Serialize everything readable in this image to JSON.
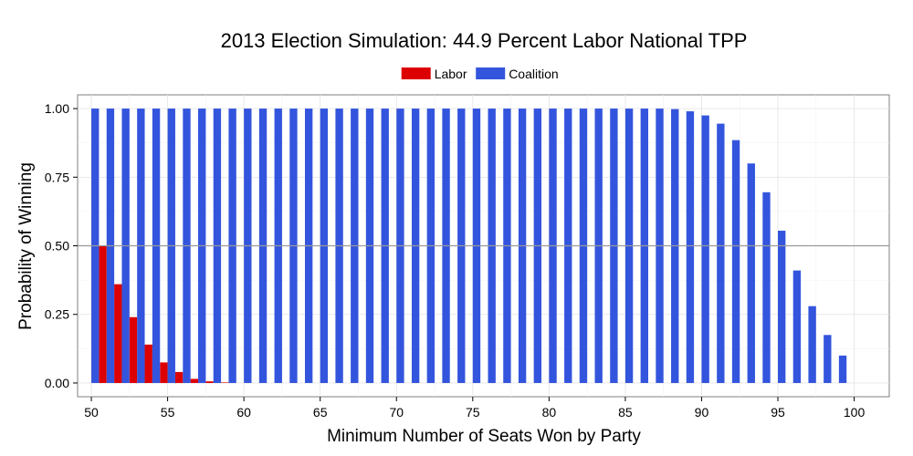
{
  "chart_data": {
    "type": "bar",
    "title": "2013 Election Simulation: 44.9 Percent Labor National TPP",
    "xlabel": "Minimum Number of Seats Won by Party",
    "ylabel": "Probability of Winning",
    "xlim": [
      49.1,
      102.3
    ],
    "ylim": [
      -0.05,
      1.05
    ],
    "xticks": [
      50,
      55,
      60,
      65,
      70,
      75,
      80,
      85,
      90,
      95,
      100
    ],
    "yticks": [
      0,
      0.25,
      0.5,
      0.75,
      1.0
    ],
    "ytick_labels": [
      "0.00",
      "0.25",
      "0.50",
      "0.75",
      "1.00"
    ],
    "reference_line_y": 0.5,
    "legend_position": "top-center",
    "grid": true,
    "series": [
      {
        "name": "Labor",
        "color": "#dd0000",
        "x": [
          50,
          51,
          52,
          53,
          54,
          55,
          56,
          57,
          58,
          59
        ],
        "values": [
          0.0,
          0.5,
          0.36,
          0.24,
          0.14,
          0.075,
          0.04,
          0.015,
          0.006,
          0.002
        ]
      },
      {
        "name": "Coalition",
        "color": "#3355dd",
        "x": [
          50,
          51,
          52,
          53,
          54,
          55,
          56,
          57,
          58,
          59,
          60,
          61,
          62,
          63,
          64,
          65,
          66,
          67,
          68,
          69,
          70,
          71,
          72,
          73,
          74,
          75,
          76,
          77,
          78,
          79,
          80,
          81,
          82,
          83,
          84,
          85,
          86,
          87,
          88,
          89,
          90,
          91,
          92,
          93,
          94,
          95,
          96,
          97,
          98,
          99
        ],
        "values": [
          1.0,
          1.0,
          1.0,
          1.0,
          1.0,
          1.0,
          1.0,
          1.0,
          1.0,
          1.0,
          1.0,
          1.0,
          1.0,
          1.0,
          1.0,
          1.0,
          1.0,
          1.0,
          1.0,
          1.0,
          1.0,
          1.0,
          1.0,
          1.0,
          1.0,
          1.0,
          1.0,
          1.0,
          1.0,
          1.0,
          1.0,
          1.0,
          1.0,
          1.0,
          1.0,
          1.0,
          1.0,
          1.0,
          0.998,
          0.99,
          0.975,
          0.945,
          0.885,
          0.8,
          0.695,
          0.555,
          0.41,
          0.28,
          0.175,
          0.1
        ]
      }
    ]
  }
}
